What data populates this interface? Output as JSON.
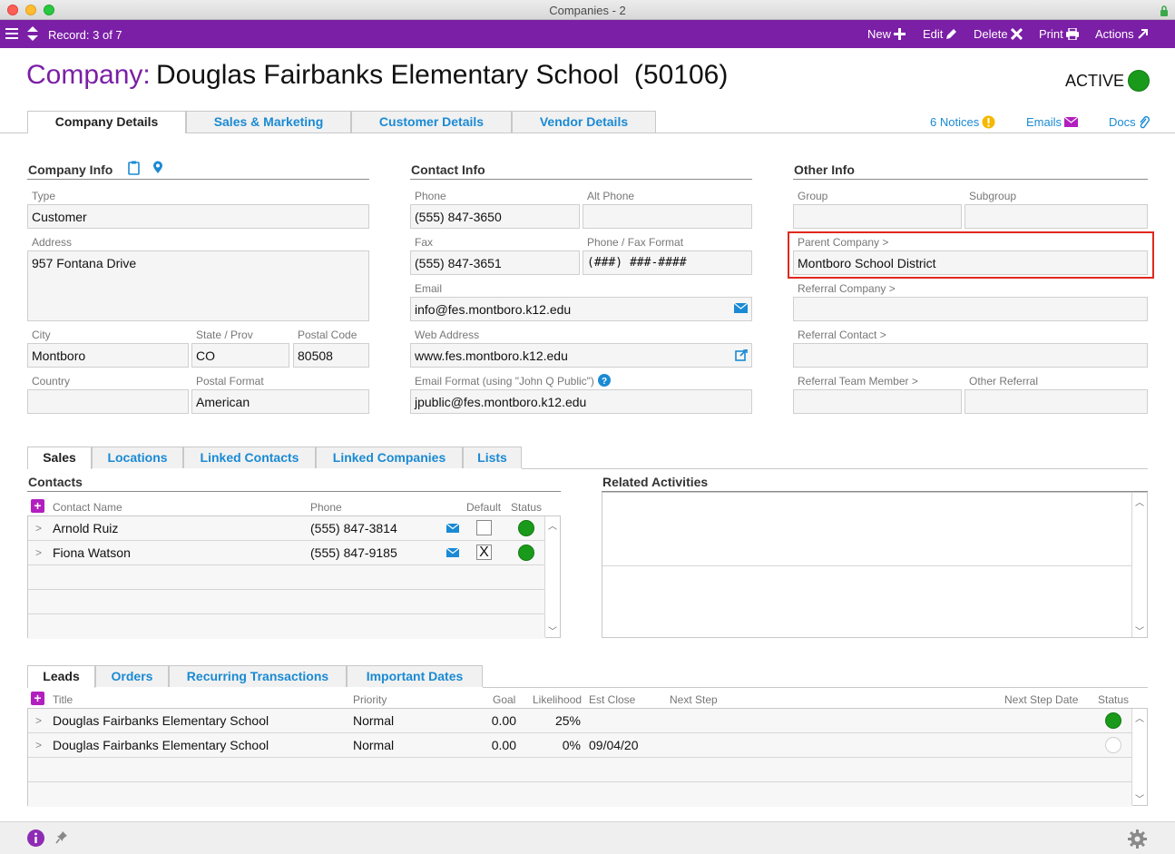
{
  "window": {
    "title": "Companies - 2"
  },
  "toolbar": {
    "record_label": "Record: 3 of 7",
    "new_label": "New",
    "edit_label": "Edit",
    "delete_label": "Delete",
    "print_label": "Print",
    "actions_label": "Actions"
  },
  "header": {
    "company_label": "Company:",
    "company_name": "Douglas Fairbanks Elementary School  (50106)",
    "status_label": "ACTIVE",
    "status_color": "#1a9a1a"
  },
  "main_tabs": [
    "Company Details",
    "Sales & Marketing",
    "Customer Details",
    "Vendor Details"
  ],
  "header_links": {
    "notices": "6 Notices",
    "emails": "Emails",
    "docs": "Docs"
  },
  "company_info": {
    "title": "Company Info",
    "type_label": "Type",
    "type": "Customer",
    "address_label": "Address",
    "address": "957 Fontana Drive",
    "city_label": "City",
    "city": "Montboro",
    "state_label": "State / Prov",
    "state": "CO",
    "postal_label": "Postal Code",
    "postal": "80508",
    "country_label": "Country",
    "country": "",
    "postal_format_label": "Postal Format",
    "postal_format": "American"
  },
  "contact_info": {
    "title": "Contact Info",
    "phone_label": "Phone",
    "phone": "(555) 847-3650",
    "alt_phone_label": "Alt Phone",
    "alt_phone": "",
    "fax_label": "Fax",
    "fax": "(555) 847-3651",
    "phone_format_label": "Phone / Fax Format",
    "phone_format": "(###) ###-####",
    "email_label": "Email",
    "email": "info@fes.montboro.k12.edu",
    "web_label": "Web Address",
    "web": "www.fes.montboro.k12.edu",
    "email_format_label": "Email Format (using \"John Q Public\")",
    "email_format": "jpublic@fes.montboro.k12.edu"
  },
  "other_info": {
    "title": "Other Info",
    "group_label": "Group",
    "group": "",
    "subgroup_label": "Subgroup",
    "subgroup": "",
    "parent_label": "Parent Company >",
    "parent": "Montboro School District",
    "referral_company_label": "Referral Company >",
    "referral_company": "",
    "referral_contact_label": "Referral Contact >",
    "referral_contact": "",
    "referral_team_label": "Referral Team Member >",
    "referral_team": "",
    "other_referral_label": "Other Referral",
    "other_referral": "",
    "highlight_color": "#e0281e"
  },
  "sub_tabs": [
    "Sales",
    "Locations",
    "Linked Contacts",
    "Linked Companies",
    "Lists"
  ],
  "contacts": {
    "title": "Contacts",
    "columns": [
      "Contact Name",
      "Phone",
      "Default",
      "Status"
    ],
    "rows": [
      {
        "name": "Arnold Ruiz",
        "phone": "(555) 847-3814",
        "default": "",
        "status": "active"
      },
      {
        "name": "Fiona Watson",
        "phone": "(555) 847-9185",
        "default": "X",
        "status": "active"
      }
    ]
  },
  "related": {
    "title": "Related Activities"
  },
  "bottom_tabs": [
    "Leads",
    "Orders",
    "Recurring Transactions",
    "Important Dates"
  ],
  "leads": {
    "columns": [
      "Title",
      "Priority",
      "Goal",
      "Likelihood",
      "Est Close",
      "Next Step",
      "Next Step Date",
      "Status"
    ],
    "rows": [
      {
        "title": "Douglas Fairbanks Elementary School",
        "priority": "Normal",
        "goal": "0.00",
        "likelihood": "25%",
        "est_close": "",
        "status": "active"
      },
      {
        "title": "Douglas Fairbanks Elementary School",
        "priority": "Normal",
        "goal": "0.00",
        "likelihood": "0%",
        "est_close": "09/04/20",
        "status": "inactive"
      }
    ]
  },
  "icons": {
    "menu": "hamburger-icon",
    "sort": "record-arrows-icon",
    "new": "plus-icon",
    "edit": "pencil-icon",
    "delete": "x-icon",
    "print": "printer-icon",
    "actions": "external-arrow-icon",
    "lock": "lock-icon",
    "info": "info-icon",
    "pin": "pin-icon",
    "gear": "gear-icon"
  }
}
